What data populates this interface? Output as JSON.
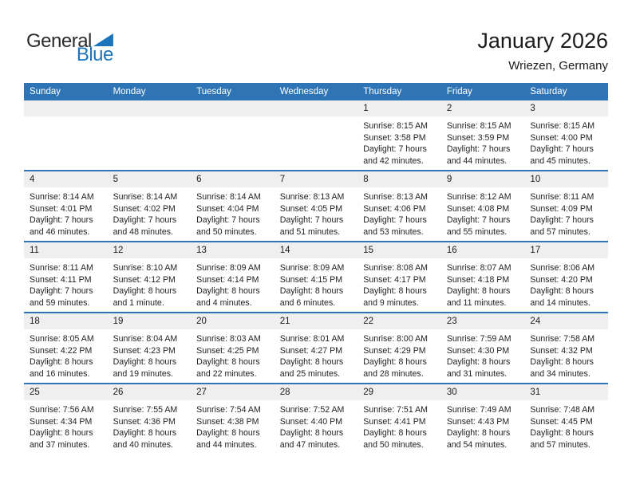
{
  "logo": {
    "general": "General",
    "blue": "Blue"
  },
  "header": {
    "title": "January 2026",
    "subtitle": "Wriezen, Germany"
  },
  "colors": {
    "header_bar_blue": "#2f75b5",
    "week_divider_blue": "#2f75b5",
    "day_band_gray": "#efefef",
    "logo_blue": "#1c75bc",
    "weekday_text": "#ffffff"
  },
  "weekdays": [
    "Sunday",
    "Monday",
    "Tuesday",
    "Wednesday",
    "Thursday",
    "Friday",
    "Saturday"
  ],
  "weeks": [
    [
      null,
      null,
      null,
      null,
      {
        "day": "1",
        "sunrise": "Sunrise: 8:15 AM",
        "sunset": "Sunset: 3:58 PM",
        "daylight": "Daylight: 7 hours and 42 minutes."
      },
      {
        "day": "2",
        "sunrise": "Sunrise: 8:15 AM",
        "sunset": "Sunset: 3:59 PM",
        "daylight": "Daylight: 7 hours and 44 minutes."
      },
      {
        "day": "3",
        "sunrise": "Sunrise: 8:15 AM",
        "sunset": "Sunset: 4:00 PM",
        "daylight": "Daylight: 7 hours and 45 minutes."
      }
    ],
    [
      {
        "day": "4",
        "sunrise": "Sunrise: 8:14 AM",
        "sunset": "Sunset: 4:01 PM",
        "daylight": "Daylight: 7 hours and 46 minutes."
      },
      {
        "day": "5",
        "sunrise": "Sunrise: 8:14 AM",
        "sunset": "Sunset: 4:02 PM",
        "daylight": "Daylight: 7 hours and 48 minutes."
      },
      {
        "day": "6",
        "sunrise": "Sunrise: 8:14 AM",
        "sunset": "Sunset: 4:04 PM",
        "daylight": "Daylight: 7 hours and 50 minutes."
      },
      {
        "day": "7",
        "sunrise": "Sunrise: 8:13 AM",
        "sunset": "Sunset: 4:05 PM",
        "daylight": "Daylight: 7 hours and 51 minutes."
      },
      {
        "day": "8",
        "sunrise": "Sunrise: 8:13 AM",
        "sunset": "Sunset: 4:06 PM",
        "daylight": "Daylight: 7 hours and 53 minutes."
      },
      {
        "day": "9",
        "sunrise": "Sunrise: 8:12 AM",
        "sunset": "Sunset: 4:08 PM",
        "daylight": "Daylight: 7 hours and 55 minutes."
      },
      {
        "day": "10",
        "sunrise": "Sunrise: 8:11 AM",
        "sunset": "Sunset: 4:09 PM",
        "daylight": "Daylight: 7 hours and 57 minutes."
      }
    ],
    [
      {
        "day": "11",
        "sunrise": "Sunrise: 8:11 AM",
        "sunset": "Sunset: 4:11 PM",
        "daylight": "Daylight: 7 hours and 59 minutes."
      },
      {
        "day": "12",
        "sunrise": "Sunrise: 8:10 AM",
        "sunset": "Sunset: 4:12 PM",
        "daylight": "Daylight: 8 hours and 1 minute."
      },
      {
        "day": "13",
        "sunrise": "Sunrise: 8:09 AM",
        "sunset": "Sunset: 4:14 PM",
        "daylight": "Daylight: 8 hours and 4 minutes."
      },
      {
        "day": "14",
        "sunrise": "Sunrise: 8:09 AM",
        "sunset": "Sunset: 4:15 PM",
        "daylight": "Daylight: 8 hours and 6 minutes."
      },
      {
        "day": "15",
        "sunrise": "Sunrise: 8:08 AM",
        "sunset": "Sunset: 4:17 PM",
        "daylight": "Daylight: 8 hours and 9 minutes."
      },
      {
        "day": "16",
        "sunrise": "Sunrise: 8:07 AM",
        "sunset": "Sunset: 4:18 PM",
        "daylight": "Daylight: 8 hours and 11 minutes."
      },
      {
        "day": "17",
        "sunrise": "Sunrise: 8:06 AM",
        "sunset": "Sunset: 4:20 PM",
        "daylight": "Daylight: 8 hours and 14 minutes."
      }
    ],
    [
      {
        "day": "18",
        "sunrise": "Sunrise: 8:05 AM",
        "sunset": "Sunset: 4:22 PM",
        "daylight": "Daylight: 8 hours and 16 minutes."
      },
      {
        "day": "19",
        "sunrise": "Sunrise: 8:04 AM",
        "sunset": "Sunset: 4:23 PM",
        "daylight": "Daylight: 8 hours and 19 minutes."
      },
      {
        "day": "20",
        "sunrise": "Sunrise: 8:03 AM",
        "sunset": "Sunset: 4:25 PM",
        "daylight": "Daylight: 8 hours and 22 minutes."
      },
      {
        "day": "21",
        "sunrise": "Sunrise: 8:01 AM",
        "sunset": "Sunset: 4:27 PM",
        "daylight": "Daylight: 8 hours and 25 minutes."
      },
      {
        "day": "22",
        "sunrise": "Sunrise: 8:00 AM",
        "sunset": "Sunset: 4:29 PM",
        "daylight": "Daylight: 8 hours and 28 minutes."
      },
      {
        "day": "23",
        "sunrise": "Sunrise: 7:59 AM",
        "sunset": "Sunset: 4:30 PM",
        "daylight": "Daylight: 8 hours and 31 minutes."
      },
      {
        "day": "24",
        "sunrise": "Sunrise: 7:58 AM",
        "sunset": "Sunset: 4:32 PM",
        "daylight": "Daylight: 8 hours and 34 minutes."
      }
    ],
    [
      {
        "day": "25",
        "sunrise": "Sunrise: 7:56 AM",
        "sunset": "Sunset: 4:34 PM",
        "daylight": "Daylight: 8 hours and 37 minutes."
      },
      {
        "day": "26",
        "sunrise": "Sunrise: 7:55 AM",
        "sunset": "Sunset: 4:36 PM",
        "daylight": "Daylight: 8 hours and 40 minutes."
      },
      {
        "day": "27",
        "sunrise": "Sunrise: 7:54 AM",
        "sunset": "Sunset: 4:38 PM",
        "daylight": "Daylight: 8 hours and 44 minutes."
      },
      {
        "day": "28",
        "sunrise": "Sunrise: 7:52 AM",
        "sunset": "Sunset: 4:40 PM",
        "daylight": "Daylight: 8 hours and 47 minutes."
      },
      {
        "day": "29",
        "sunrise": "Sunrise: 7:51 AM",
        "sunset": "Sunset: 4:41 PM",
        "daylight": "Daylight: 8 hours and 50 minutes."
      },
      {
        "day": "30",
        "sunrise": "Sunrise: 7:49 AM",
        "sunset": "Sunset: 4:43 PM",
        "daylight": "Daylight: 8 hours and 54 minutes."
      },
      {
        "day": "31",
        "sunrise": "Sunrise: 7:48 AM",
        "sunset": "Sunset: 4:45 PM",
        "daylight": "Daylight: 8 hours and 57 minutes."
      }
    ]
  ]
}
